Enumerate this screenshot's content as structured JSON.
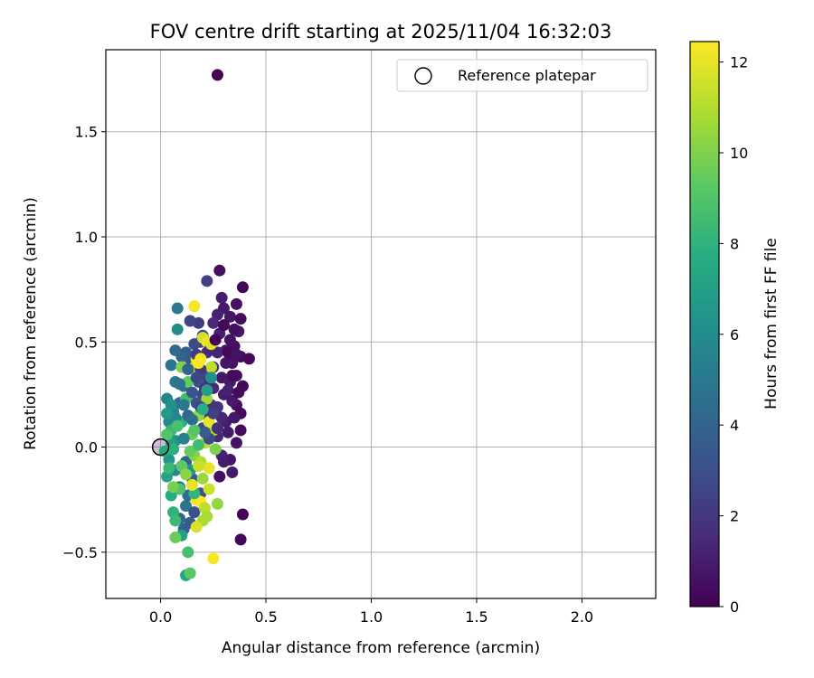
{
  "chart_data": {
    "type": "scatter",
    "title": "FOV centre drift starting at 2025/11/04 16:32:03",
    "xlabel": "Angular distance from reference (arcmin)",
    "ylabel": "Rotation from reference (arcmin)",
    "xlim": [
      -0.26,
      2.35
    ],
    "ylim": [
      -0.72,
      1.89
    ],
    "x_ticks": [
      0.0,
      0.5,
      1.0,
      1.5,
      2.0
    ],
    "x_tick_labels": [
      "0.0",
      "0.5",
      "1.0",
      "1.5",
      "2.0"
    ],
    "y_ticks": [
      -0.5,
      0.0,
      0.5,
      1.0,
      1.5
    ],
    "y_tick_labels": [
      "−0.5",
      "0.0",
      "0.5",
      "1.0",
      "1.5"
    ],
    "grid": true,
    "legend": {
      "position": "top-right",
      "entries": [
        "Reference platepar"
      ]
    },
    "colorbar": {
      "label": "Hours from first FF file",
      "colormap": "viridis",
      "range": [
        0,
        12.45
      ],
      "ticks": [
        0,
        2,
        4,
        6,
        8,
        10,
        12
      ],
      "tick_labels": [
        "0",
        "2",
        "4",
        "6",
        "8",
        "10",
        "12"
      ]
    },
    "reference_point": {
      "name": "Reference platepar",
      "x": 0.0,
      "y": 0.0
    },
    "series": [
      {
        "points": [
          [
            0.27,
            1.77,
            0.0
          ],
          [
            0.28,
            0.84,
            0.5
          ],
          [
            0.42,
            0.42,
            0.3
          ],
          [
            0.39,
            0.76,
            0.2
          ],
          [
            0.36,
            0.68,
            0.6
          ],
          [
            0.38,
            0.61,
            0.4
          ],
          [
            0.37,
            0.55,
            0.8
          ],
          [
            0.29,
            0.71,
            1.0
          ],
          [
            0.3,
            0.66,
            0.9
          ],
          [
            0.33,
            0.62,
            0.7
          ],
          [
            0.27,
            0.63,
            1.2
          ],
          [
            0.25,
            0.59,
            1.5
          ],
          [
            0.28,
            0.54,
            1.1
          ],
          [
            0.35,
            0.48,
            0.5
          ],
          [
            0.34,
            0.4,
            0.6
          ],
          [
            0.38,
            0.43,
            0.3
          ],
          [
            0.31,
            0.46,
            0.9
          ],
          [
            0.27,
            0.45,
            1.3
          ],
          [
            0.36,
            0.34,
            0.4
          ],
          [
            0.39,
            0.29,
            0.2
          ],
          [
            0.33,
            0.31,
            0.8
          ],
          [
            0.3,
            0.25,
            1.0
          ],
          [
            0.36,
            0.2,
            0.5
          ],
          [
            0.38,
            0.16,
            0.3
          ],
          [
            0.31,
            0.12,
            1.1
          ],
          [
            0.38,
            0.08,
            0.4
          ],
          [
            0.36,
            0.02,
            0.6
          ],
          [
            0.33,
            -0.06,
            0.7
          ],
          [
            0.34,
            -0.12,
            0.9
          ],
          [
            0.39,
            -0.32,
            0.1
          ],
          [
            0.38,
            -0.44,
            0.2
          ],
          [
            0.29,
            -0.04,
            1.2
          ],
          [
            0.27,
            0.05,
            1.4
          ],
          [
            0.24,
            0.2,
            1.6
          ],
          [
            0.22,
            0.32,
            1.8
          ],
          [
            0.25,
            0.38,
            1.7
          ],
          [
            0.22,
            0.45,
            2.0
          ],
          [
            0.19,
            0.5,
            2.1
          ],
          [
            0.18,
            0.59,
            2.2
          ],
          [
            0.14,
            0.6,
            2.5
          ],
          [
            0.22,
            0.79,
            2.4
          ],
          [
            0.2,
            0.53,
            2.6
          ],
          [
            0.16,
            0.49,
            2.8
          ],
          [
            0.21,
            0.36,
            2.9
          ],
          [
            0.18,
            0.31,
            3.1
          ],
          [
            0.2,
            0.25,
            2.7
          ],
          [
            0.17,
            0.21,
            3.2
          ],
          [
            0.23,
            0.14,
            2.3
          ],
          [
            0.2,
            0.09,
            2.9
          ],
          [
            0.14,
            0.42,
            3.4
          ],
          [
            0.12,
            0.45,
            3.6
          ],
          [
            0.1,
            0.43,
            3.9
          ],
          [
            0.07,
            0.46,
            4.3
          ],
          [
            0.05,
            0.39,
            4.8
          ],
          [
            0.07,
            0.31,
            5.0
          ],
          [
            0.11,
            0.29,
            4.6
          ],
          [
            0.09,
            0.21,
            4.2
          ],
          [
            0.06,
            0.17,
            5.3
          ],
          [
            0.03,
            0.23,
            5.6
          ],
          [
            0.04,
            0.12,
            5.9
          ],
          [
            0.07,
            0.03,
            6.1
          ],
          [
            0.04,
            -0.06,
            6.5
          ],
          [
            0.07,
            -0.11,
            5.7
          ],
          [
            0.09,
            -0.19,
            5.2
          ],
          [
            0.12,
            -0.28,
            4.8
          ],
          [
            0.13,
            -0.23,
            4.4
          ],
          [
            0.09,
            -0.34,
            4.0
          ],
          [
            0.11,
            -0.39,
            3.8
          ],
          [
            0.14,
            -0.36,
            3.5
          ],
          [
            0.16,
            -0.31,
            3.2
          ],
          [
            0.19,
            -0.22,
            3.0
          ],
          [
            0.15,
            -0.15,
            3.4
          ],
          [
            0.12,
            -0.07,
            3.7
          ],
          [
            0.08,
            0.66,
            5.0
          ],
          [
            0.08,
            0.56,
            6.0
          ],
          [
            0.05,
            0.02,
            6.8
          ],
          [
            0.03,
            -0.14,
            7.2
          ],
          [
            0.05,
            -0.23,
            7.6
          ],
          [
            0.06,
            -0.31,
            8.0
          ],
          [
            0.07,
            -0.35,
            8.4
          ],
          [
            0.1,
            -0.42,
            7.0
          ],
          [
            0.12,
            -0.61,
            7.3
          ],
          [
            0.13,
            -0.5,
            8.7
          ],
          [
            0.14,
            -0.6,
            9.2
          ],
          [
            0.07,
            -0.43,
            9.6
          ],
          [
            0.09,
            -0.2,
            8.9
          ],
          [
            0.05,
            0.08,
            8.2
          ],
          [
            0.03,
            0.06,
            9.0
          ],
          [
            0.06,
            -0.19,
            9.8
          ],
          [
            0.1,
            0.12,
            7.8
          ],
          [
            0.12,
            0.23,
            8.6
          ],
          [
            0.13,
            0.31,
            9.4
          ],
          [
            0.1,
            0.38,
            10.0
          ],
          [
            0.16,
            0.38,
            11.0
          ],
          [
            0.17,
            0.42,
            12.4
          ],
          [
            0.16,
            0.67,
            12.3
          ],
          [
            0.2,
            0.52,
            11.6
          ],
          [
            0.22,
            0.5,
            12.1
          ],
          [
            0.24,
            0.38,
            11.3
          ],
          [
            0.22,
            0.23,
            10.6
          ],
          [
            0.18,
            0.15,
            10.3
          ],
          [
            0.15,
            0.06,
            9.7
          ],
          [
            0.16,
            -0.04,
            10.1
          ],
          [
            0.19,
            -0.07,
            11.0
          ],
          [
            0.2,
            -0.15,
            10.5
          ],
          [
            0.17,
            -0.25,
            12.2
          ],
          [
            0.19,
            -0.26,
            12.4
          ],
          [
            0.21,
            -0.29,
            11.2
          ],
          [
            0.22,
            -0.33,
            10.8
          ],
          [
            0.23,
            -0.2,
            11.5
          ],
          [
            0.2,
            -0.35,
            10.9
          ],
          [
            0.17,
            -0.38,
            11.8
          ],
          [
            0.25,
            -0.53,
            12.3
          ],
          [
            0.27,
            -0.27,
            10.4
          ],
          [
            0.23,
            -0.1,
            12.0
          ],
          [
            0.25,
            0.08,
            10.7
          ],
          [
            0.26,
            -0.01,
            9.9
          ],
          [
            0.21,
            0.02,
            11.1
          ],
          [
            0.23,
            0.12,
            12.1
          ],
          [
            0.16,
            -0.22,
            8.1
          ],
          [
            0.14,
            -0.11,
            6.4
          ],
          [
            0.11,
            0.04,
            5.5
          ],
          [
            0.13,
            0.15,
            4.1
          ],
          [
            0.15,
            0.26,
            3.3
          ],
          [
            0.17,
            0.44,
            2.2
          ],
          [
            0.19,
            0.37,
            2.0
          ],
          [
            0.21,
            0.28,
            1.9
          ],
          [
            0.23,
            0.46,
            1.4
          ],
          [
            0.25,
            0.28,
            1.5
          ],
          [
            0.27,
            0.19,
            1.8
          ],
          [
            0.29,
            0.33,
            0.8
          ],
          [
            0.31,
            0.4,
            0.7
          ],
          [
            0.33,
            0.51,
            0.6
          ],
          [
            0.35,
            0.56,
            0.5
          ],
          [
            0.32,
            0.27,
            1.2
          ],
          [
            0.34,
            0.22,
            0.9
          ],
          [
            0.37,
            0.26,
            0.4
          ],
          [
            0.29,
            0.14,
            1.3
          ],
          [
            0.27,
            0.09,
            1.6
          ],
          [
            0.25,
            0.16,
            2.4
          ],
          [
            0.23,
            0.04,
            2.8
          ],
          [
            0.21,
            0.07,
            3.6
          ],
          [
            0.19,
            0.19,
            2.5
          ],
          [
            0.17,
            0.33,
            2.7
          ],
          [
            0.15,
            0.13,
            4.5
          ],
          [
            0.13,
            0.37,
            3.9
          ],
          [
            0.11,
            0.2,
            4.9
          ],
          [
            0.09,
            0.3,
            4.7
          ],
          [
            0.07,
            0.14,
            5.8
          ],
          [
            0.05,
            0.2,
            6.2
          ],
          [
            0.03,
            0.16,
            6.7
          ],
          [
            0.02,
            -0.02,
            7.4
          ],
          [
            0.04,
            -0.1,
            8.3
          ],
          [
            0.06,
            -0.01,
            7.9
          ],
          [
            0.08,
            0.1,
            8.8
          ],
          [
            0.1,
            -0.09,
            9.3
          ],
          [
            0.12,
            -0.13,
            10.2
          ],
          [
            0.14,
            -0.02,
            9.5
          ],
          [
            0.16,
            0.08,
            9.1
          ],
          [
            0.18,
            0.01,
            8.5
          ],
          [
            0.2,
            0.18,
            7.7
          ],
          [
            0.22,
            0.27,
            6.9
          ],
          [
            0.24,
            0.33,
            6.3
          ],
          [
            0.18,
            -0.09,
            11.4
          ],
          [
            0.15,
            -0.18,
            12.0
          ],
          [
            0.19,
            0.42,
            12.2
          ],
          [
            0.18,
            0.4,
            12.45
          ],
          [
            0.24,
            0.49,
            11.9
          ],
          [
            0.26,
            0.51,
            0.1
          ],
          [
            0.3,
            0.58,
            0.2
          ],
          [
            0.32,
            0.45,
            0.3
          ],
          [
            0.34,
            0.34,
            0.4
          ],
          [
            0.36,
            0.44,
            0.6
          ],
          [
            0.35,
            0.14,
            0.8
          ],
          [
            0.32,
            0.07,
            0.9
          ],
          [
            0.3,
            -0.07,
            1.0
          ],
          [
            0.28,
            -0.14,
            0.5
          ]
        ]
      }
    ]
  }
}
